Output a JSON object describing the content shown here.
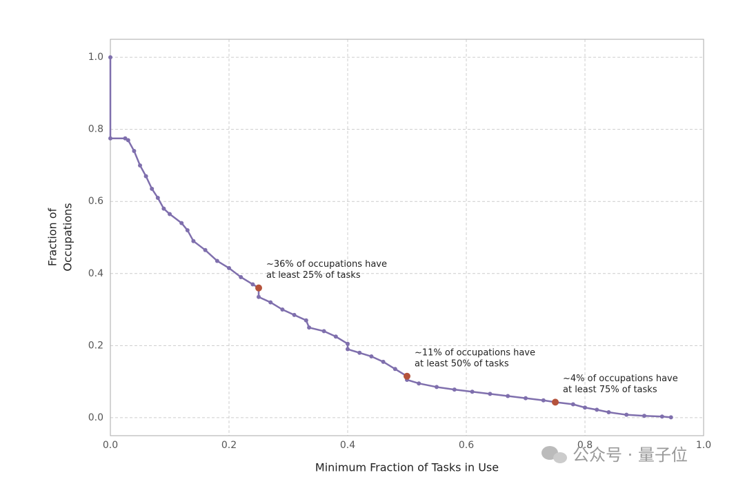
{
  "chart_data": {
    "type": "line",
    "x_label": "Minimum Fraction of Tasks in Use",
    "y_label": [
      "Fraction of",
      "Occupations"
    ],
    "xlim": [
      0,
      1
    ],
    "ylim": [
      -0.05,
      1.05
    ],
    "xticks": [
      {
        "value": 0,
        "label": "0.0"
      },
      0.2,
      0.4,
      0.6,
      0.8,
      {
        "value": 1,
        "label": "1.0"
      }
    ],
    "yticks": [
      {
        "value": 0,
        "label": "0.0"
      },
      0.2,
      0.4,
      0.6,
      0.8,
      {
        "value": 1,
        "label": "1.0"
      }
    ],
    "grid": true,
    "series": [
      {
        "name": "Occupations",
        "color": "#7f6fad",
        "x": [
          0,
          0,
          0.025,
          0.03,
          0.04,
          0.05,
          0.06,
          0.07,
          0.08,
          0.09,
          0.1,
          0.12,
          0.13,
          0.14,
          0.16,
          0.18,
          0.2,
          0.22,
          0.24,
          0.25,
          0.25,
          0.27,
          0.29,
          0.31,
          0.33,
          0.335,
          0.36,
          0.38,
          0.4,
          0.4,
          0.42,
          0.44,
          0.46,
          0.48,
          0.5,
          0.5,
          0.52,
          0.55,
          0.58,
          0.61,
          0.64,
          0.67,
          0.7,
          0.73,
          0.75,
          0.78,
          0.8,
          0.82,
          0.84,
          0.87,
          0.9,
          0.93,
          0.945
        ],
        "values": [
          1.0,
          0.775,
          0.775,
          0.77,
          0.74,
          0.7,
          0.67,
          0.635,
          0.61,
          0.58,
          0.565,
          0.54,
          0.52,
          0.49,
          0.465,
          0.435,
          0.415,
          0.39,
          0.37,
          0.36,
          0.335,
          0.32,
          0.3,
          0.285,
          0.27,
          0.25,
          0.24,
          0.225,
          0.205,
          0.19,
          0.18,
          0.17,
          0.155,
          0.135,
          0.115,
          0.105,
          0.095,
          0.085,
          0.078,
          0.072,
          0.066,
          0.06,
          0.054,
          0.048,
          0.043,
          0.037,
          0.028,
          0.022,
          0.015,
          0.008,
          0.005,
          0.003,
          0.001
        ]
      }
    ],
    "highlights": {
      "color": "#b5533c",
      "x": [
        0.25,
        0.5,
        0.75
      ],
      "values": [
        0.36,
        0.115,
        0.043
      ],
      "annotations": [
        [
          "~36% of occupations have",
          "at least 25% of tasks"
        ],
        [
          "~11% of occupations have",
          "at least 50% of tasks"
        ],
        [
          "~4% of occupations have",
          "at least 75% of tasks"
        ]
      ]
    }
  },
  "watermark": "公众号 · 量子位"
}
